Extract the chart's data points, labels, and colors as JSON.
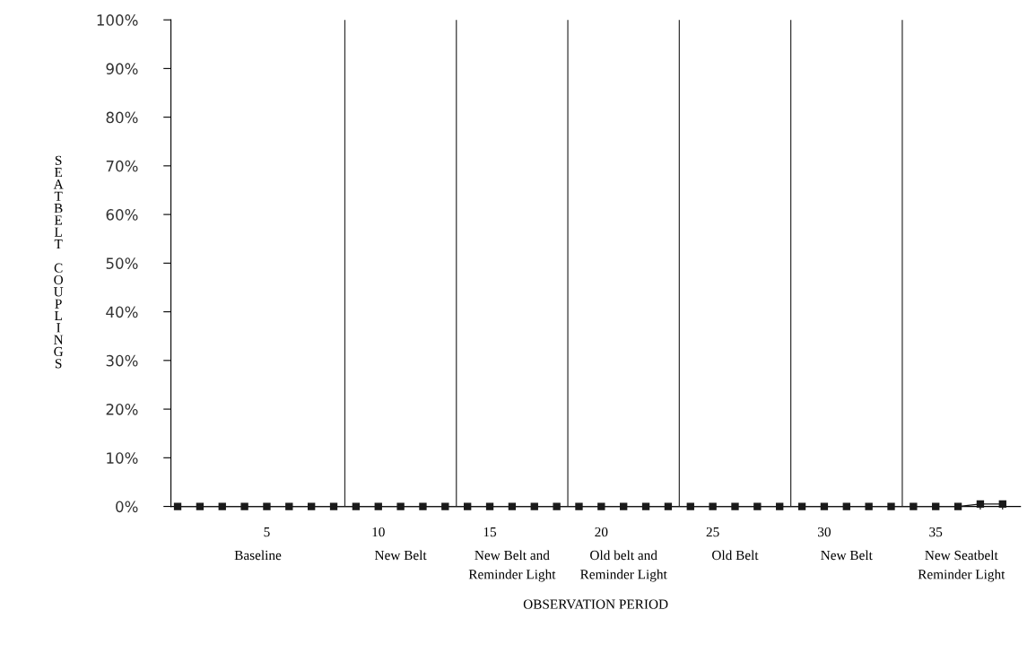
{
  "chart_data": {
    "type": "line",
    "xlabel": "OBSERVATION PERIOD",
    "ylabel": "SEATBELT COUPLINGS",
    "x": [
      1,
      2,
      3,
      4,
      5,
      6,
      7,
      8,
      9,
      10,
      11,
      12,
      13,
      14,
      15,
      16,
      17,
      18,
      19,
      20,
      21,
      22,
      23,
      24,
      25,
      26,
      27,
      28,
      29,
      30,
      31,
      32,
      33,
      34,
      35,
      36,
      37,
      38
    ],
    "series": [
      {
        "color": "#1a1a1a",
        "values": [
          0,
          0,
          0,
          0,
          0,
          0,
          0,
          0,
          0,
          0,
          0,
          0,
          0,
          0,
          0,
          0,
          0,
          0,
          0,
          0,
          0,
          0,
          0,
          0,
          0,
          0,
          0,
          0,
          0,
          0,
          0,
          0,
          0,
          0,
          0,
          0,
          0.5,
          0.5
        ]
      }
    ],
    "marker": "square",
    "line_style": "solid",
    "grid": false,
    "legend": false,
    "xlim": [
      0.7,
      38.8
    ],
    "xticks": [
      {
        "value": 1,
        "label": null
      },
      {
        "value": 2,
        "label": null
      },
      {
        "value": 3,
        "label": null
      },
      {
        "value": 4,
        "label": null
      },
      5,
      {
        "value": 6,
        "label": null
      },
      {
        "value": 7,
        "label": null
      },
      {
        "value": 8,
        "label": null
      },
      {
        "value": 9,
        "label": null
      },
      10,
      {
        "value": 11,
        "label": null
      },
      {
        "value": 12,
        "label": null
      },
      {
        "value": 13,
        "label": null
      },
      {
        "value": 14,
        "label": null
      },
      15,
      {
        "value": 16,
        "label": null
      },
      {
        "value": 17,
        "label": null
      },
      {
        "value": 18,
        "label": null
      },
      {
        "value": 19,
        "label": null
      },
      20,
      {
        "value": 21,
        "label": null
      },
      {
        "value": 22,
        "label": null
      },
      {
        "value": 23,
        "label": null
      },
      {
        "value": 24,
        "label": null
      },
      25,
      {
        "value": 26,
        "label": null
      },
      {
        "value": 27,
        "label": null
      },
      {
        "value": 28,
        "label": null
      },
      {
        "value": 29,
        "label": null
      },
      30,
      {
        "value": 31,
        "label": null
      },
      {
        "value": 32,
        "label": null
      },
      {
        "value": 33,
        "label": null
      },
      {
        "value": 34,
        "label": null
      },
      35,
      {
        "value": 36,
        "label": null
      },
      {
        "value": 37,
        "label": null
      },
      {
        "value": 38,
        "label": null
      }
    ],
    "ylim": [
      0,
      100
    ],
    "yticks": [
      {
        "value": 0,
        "label": "0%"
      },
      {
        "value": 10,
        "label": "10%"
      },
      {
        "value": 20,
        "label": "20%"
      },
      {
        "value": 30,
        "label": "30%"
      },
      {
        "value": 40,
        "label": "40%"
      },
      {
        "value": 50,
        "label": "50%"
      },
      {
        "value": 60,
        "label": "60%"
      },
      {
        "value": 70,
        "label": "70%"
      },
      {
        "value": 80,
        "label": "80%"
      },
      {
        "value": 90,
        "label": "90%"
      },
      {
        "value": 100,
        "label": "100%"
      }
    ],
    "ref_lines": [
      {
        "axis": "x",
        "value": 8.5,
        "color": "#333333"
      },
      {
        "axis": "x",
        "value": 13.5,
        "color": "#333333"
      },
      {
        "axis": "x",
        "value": 18.5,
        "color": "#333333"
      },
      {
        "axis": "x",
        "value": 23.5,
        "color": "#333333"
      },
      {
        "axis": "x",
        "value": 28.5,
        "color": "#333333"
      },
      {
        "axis": "x",
        "value": 33.5,
        "color": "#333333"
      }
    ],
    "annotations": [
      "Baseline",
      "New Belt",
      "New Belt and\nReminder Light",
      "Old belt and\nReminder Light",
      "Old Belt",
      "New Belt",
      "New Seatbelt\nReminder Light"
    ]
  }
}
